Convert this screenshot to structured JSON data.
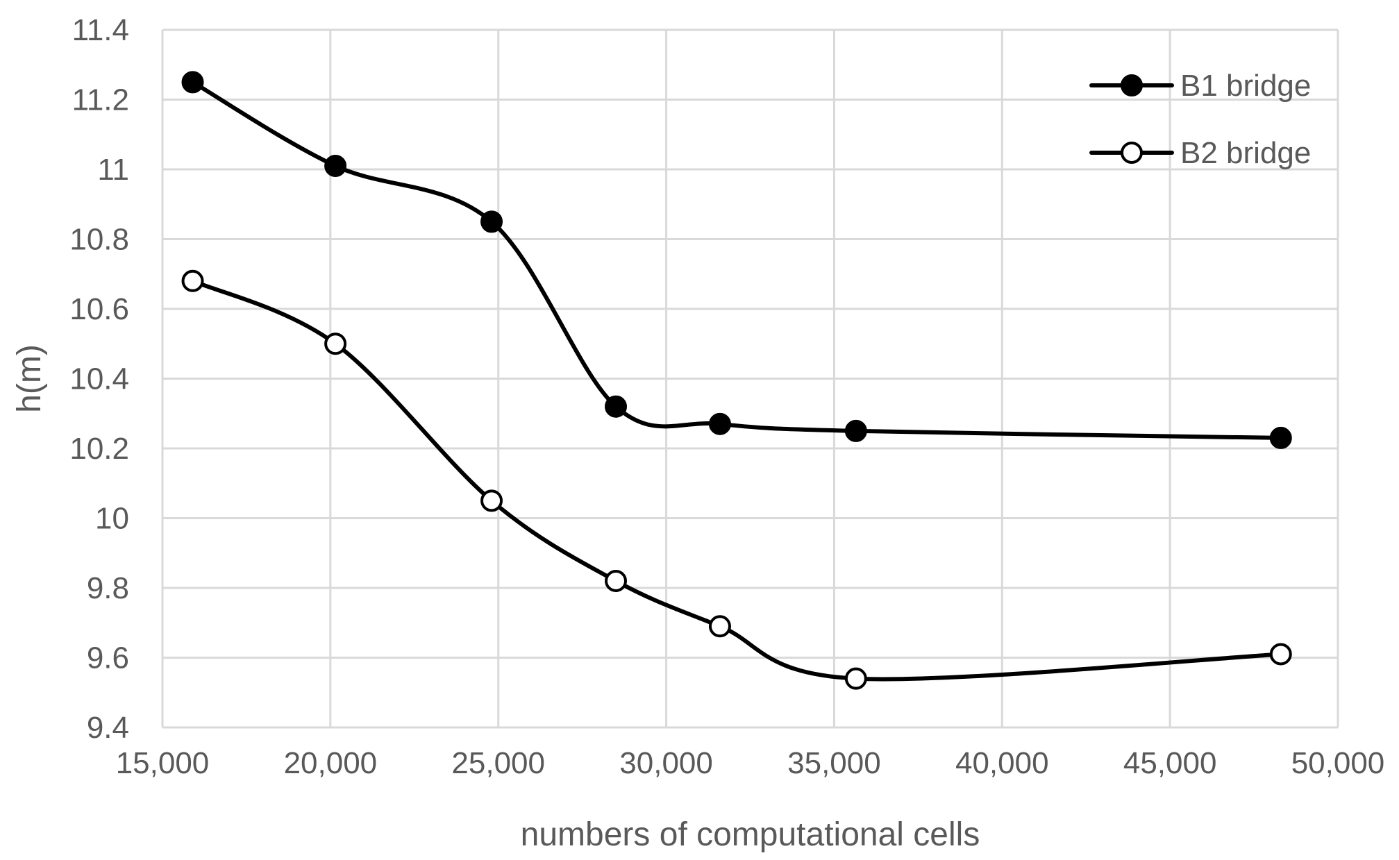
{
  "chart_data": {
    "type": "line",
    "title": "",
    "xlabel": "numbers of computational cells",
    "ylabel": "h(m)",
    "xlim": [
      15000,
      50000
    ],
    "ylim": [
      9.4,
      11.4
    ],
    "xticks": [
      15000,
      20000,
      25000,
      30000,
      35000,
      40000,
      45000,
      50000
    ],
    "xtick_labels": [
      "15,000",
      "20,000",
      "25,000",
      "30,000",
      "35,000",
      "40,000",
      "45,000",
      "50,000"
    ],
    "yticks": [
      9.4,
      9.6,
      9.8,
      10,
      10.2,
      10.4,
      10.6,
      10.8,
      11,
      11.2,
      11.4
    ],
    "ytick_labels": [
      "9.4",
      "9.6",
      "9.8",
      "10",
      "10.2",
      "10.4",
      "10.6",
      "10.8",
      "11",
      "11.2",
      "11.4"
    ],
    "grid": true,
    "smooth": true,
    "legend_position": "top-right",
    "series": [
      {
        "name": "B1 bridge",
        "marker": "filled-circle",
        "color": "#000000",
        "x": [
          15900,
          20150,
          24800,
          28500,
          31600,
          35650,
          48300
        ],
        "y": [
          11.25,
          11.01,
          10.85,
          10.32,
          10.27,
          10.25,
          10.23
        ]
      },
      {
        "name": "B2 bridge",
        "marker": "open-circle",
        "color": "#000000",
        "x": [
          15900,
          20150,
          24800,
          28500,
          31600,
          35650,
          48300
        ],
        "y": [
          10.68,
          10.5,
          10.05,
          9.82,
          9.69,
          9.54,
          9.61
        ]
      }
    ]
  }
}
